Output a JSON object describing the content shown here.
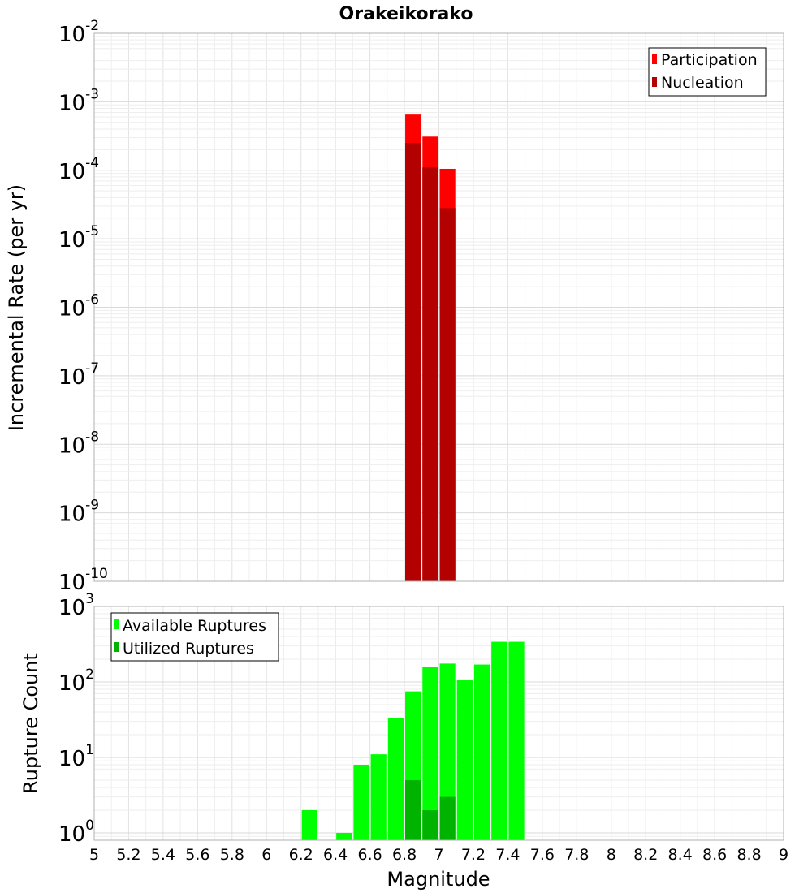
{
  "chart_data": [
    {
      "type": "bar",
      "title": "Orakeikorako",
      "xlabel": "",
      "ylabel": "Incremental Rate (per yr)",
      "yscale": "log",
      "ylim": [
        1e-10,
        0.01
      ],
      "xlim": [
        5,
        9
      ],
      "grid": true,
      "legend_position": "top-right",
      "legend": [
        "Participation",
        "Nucleation"
      ],
      "bar_width": 0.1,
      "series": [
        {
          "name": "Participation",
          "color": "#ff0000",
          "x": [
            6.85,
            6.95,
            7.05
          ],
          "values": [
            0.00065,
            0.00031,
            0.000105
          ]
        },
        {
          "name": "Nucleation",
          "color": "#b30000",
          "x": [
            6.85,
            6.95,
            7.05
          ],
          "values": [
            0.00025,
            0.00011,
            2.8e-05
          ]
        }
      ]
    },
    {
      "type": "bar",
      "title": "",
      "xlabel": "Magnitude",
      "ylabel": "Rupture Count",
      "yscale": "log",
      "ylim": [
        0.8,
        1000
      ],
      "xlim": [
        5,
        9
      ],
      "grid": true,
      "legend_position": "top-left",
      "legend": [
        "Available Ruptures",
        "Utilized Ruptures"
      ],
      "bar_width": 0.1,
      "series": [
        {
          "name": "Available Ruptures",
          "color": "#00ff00",
          "x": [
            6.25,
            6.45,
            6.55,
            6.65,
            6.75,
            6.85,
            6.95,
            7.05,
            7.15,
            7.25,
            7.35,
            7.45
          ],
          "values": [
            2,
            1,
            8,
            11,
            33,
            75,
            160,
            175,
            105,
            170,
            340,
            340
          ]
        },
        {
          "name": "Utilized Ruptures",
          "color": "#00b300",
          "x": [
            6.85,
            6.95,
            7.05
          ],
          "values": [
            5,
            2,
            3
          ]
        }
      ]
    }
  ],
  "x_ticks": [
    "5",
    "5.2",
    "5.4",
    "5.6",
    "5.8",
    "6",
    "6.2",
    "6.4",
    "6.6",
    "6.8",
    "7",
    "7.2",
    "7.4",
    "7.6",
    "7.8",
    "8",
    "8.2",
    "8.4",
    "8.6",
    "8.8",
    "9"
  ],
  "top_y_ticks": [
    {
      "base": "10",
      "exp": "-10"
    },
    {
      "base": "10",
      "exp": "-9"
    },
    {
      "base": "10",
      "exp": "-8"
    },
    {
      "base": "10",
      "exp": "-7"
    },
    {
      "base": "10",
      "exp": "-6"
    },
    {
      "base": "10",
      "exp": "-5"
    },
    {
      "base": "10",
      "exp": "-4"
    },
    {
      "base": "10",
      "exp": "-3"
    },
    {
      "base": "10",
      "exp": "-2"
    }
  ],
  "bottom_y_ticks": [
    {
      "base": "10",
      "exp": "0"
    },
    {
      "base": "10",
      "exp": "1"
    },
    {
      "base": "10",
      "exp": "2"
    },
    {
      "base": "10",
      "exp": "3"
    }
  ]
}
